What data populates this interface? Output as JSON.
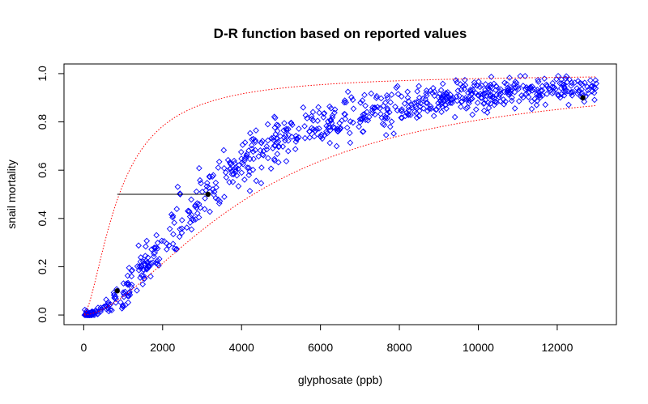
{
  "chart_data": {
    "type": "scatter",
    "title": "D-R function based on reported values",
    "xlabel": "glyphosate (ppb)",
    "ylabel": "snail mortality",
    "xlim": [
      -500,
      13500
    ],
    "ylim": [
      -0.04,
      1.04
    ],
    "xticks": [
      0,
      2000,
      4000,
      6000,
      8000,
      10000,
      12000
    ],
    "yticks": [
      0.0,
      0.2,
      0.4,
      0.6,
      0.8,
      1.0
    ],
    "xtick_labels": [
      "0",
      "2000",
      "4000",
      "6000",
      "8000",
      "10000",
      "12000"
    ],
    "ytick_labels": [
      "0.0",
      "0.2",
      "0.4",
      "0.6",
      "0.8",
      "1.0"
    ],
    "grid": false,
    "legend": "none",
    "colors": {
      "points": "#0000ff",
      "bounds": "#ff0000",
      "markers": "#000000",
      "segment": "#000000"
    },
    "dose_response": {
      "ec50": 3150,
      "hill_slope": 2.0,
      "x_max": 13000
    },
    "bounds": {
      "upper": {
        "ec50": 900,
        "hill_slope": 1.6
      },
      "lower": {
        "ec50": 4300,
        "hill_slope": 1.7
      }
    },
    "ec50_segment": {
      "x": [
        850,
        3150
      ],
      "y": 0.5
    },
    "highlighted_points": [
      {
        "x": 850,
        "y": 0.1
      },
      {
        "x": 3150,
        "y": 0.5
      },
      {
        "x": 12650,
        "y": 0.9
      }
    ],
    "n_points": 800
  }
}
